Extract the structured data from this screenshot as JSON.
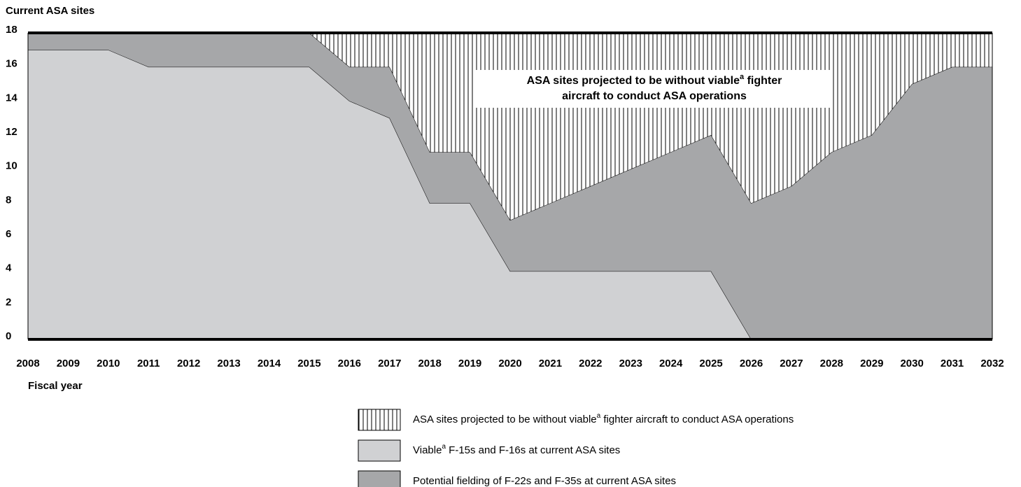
{
  "chart_data": {
    "type": "stacked_area",
    "title": "Current ASA sites",
    "x_label": "Fiscal year",
    "annotation": [
      "ASA sites projected to be without viable",
      "a",
      " fighter",
      "aircraft to conduct ASA operations"
    ],
    "x": [
      2008,
      2009,
      2010,
      2011,
      2012,
      2013,
      2014,
      2015,
      2016,
      2017,
      2018,
      2019,
      2020,
      2021,
      2022,
      2023,
      2024,
      2025,
      2026,
      2027,
      2028,
      2029,
      2030,
      2031,
      2032
    ],
    "xlim": [
      2008,
      2032
    ],
    "xticks": [
      2008,
      2009,
      2010,
      2011,
      2012,
      2013,
      2014,
      2015,
      2016,
      2017,
      2018,
      2019,
      2020,
      2021,
      2022,
      2023,
      2024,
      2025,
      2026,
      2027,
      2028,
      2029,
      2030,
      2031,
      2032
    ],
    "ylim": [
      0,
      18
    ],
    "yticks": [
      0,
      2,
      4,
      6,
      8,
      10,
      12,
      14,
      16,
      18
    ],
    "series": [
      {
        "name": [
          "Viable",
          "a",
          " F-15s and F-16s at current ASA sites"
        ],
        "color": "#d0d1d3",
        "values": [
          17,
          17,
          17,
          16,
          16,
          16,
          16,
          16,
          14,
          13,
          8,
          8,
          4,
          4,
          4,
          4,
          4,
          4,
          0,
          0,
          0,
          0,
          0,
          0,
          0
        ]
      },
      {
        "name": [
          "Potential fielding of F-22s and F-35s at current ASA sites"
        ],
        "color": "#a6a7a9",
        "values": [
          1,
          1,
          1,
          2,
          2,
          2,
          2,
          2,
          2,
          3,
          3,
          3,
          3,
          4,
          5,
          6,
          7,
          8,
          8,
          9,
          11,
          12,
          15,
          16,
          16
        ]
      },
      {
        "name": [
          "ASA sites projected to be without viable",
          "a",
          " fighter aircraft to conduct ASA operations"
        ],
        "color": "hatch",
        "values": [
          0,
          0,
          0,
          0,
          0,
          0,
          0,
          0,
          2,
          2,
          7,
          7,
          11,
          10,
          9,
          8,
          7,
          6,
          10,
          9,
          7,
          6,
          3,
          2,
          2
        ]
      }
    ],
    "legend_order": [
      2,
      0,
      1
    ]
  }
}
